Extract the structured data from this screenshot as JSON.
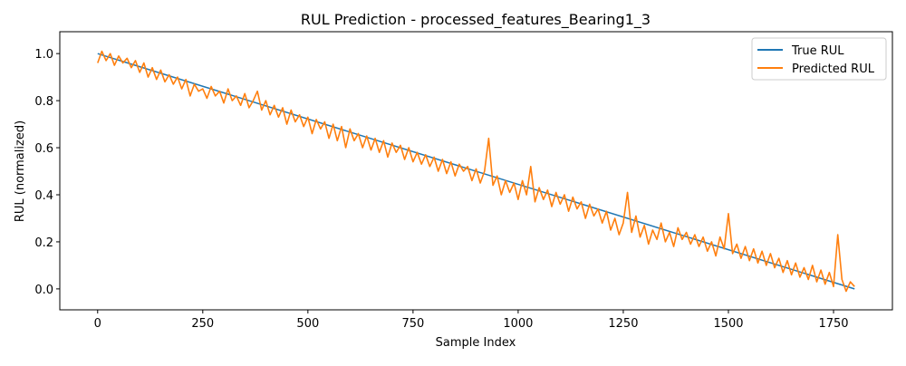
{
  "chart_data": {
    "type": "line",
    "title": "RUL Prediction - processed_features_Bearing1_3",
    "xlabel": "Sample Index",
    "ylabel": "RUL (normalized)",
    "xlim": [
      -90,
      1890
    ],
    "ylim": [
      -0.089,
      1.093
    ],
    "xticks": [
      0,
      250,
      500,
      750,
      1000,
      1250,
      1500,
      1750
    ],
    "yticks": [
      0.0,
      0.2,
      0.4,
      0.6,
      0.8,
      1.0
    ],
    "xtick_labels": [
      "0",
      "250",
      "500",
      "750",
      "1000",
      "1250",
      "1500",
      "1750"
    ],
    "ytick_labels": [
      "0.0",
      "0.2",
      "0.4",
      "0.6",
      "0.8",
      "1.0"
    ],
    "grid": false,
    "legend_position": "top-right",
    "series": [
      {
        "name": "True RUL",
        "color": "#1f77b4",
        "x": [
          0,
          1800
        ],
        "y": [
          1.0,
          0.0
        ]
      },
      {
        "name": "Predicted RUL",
        "color": "#ff7f0e",
        "x_step": 10,
        "y": [
          0.96,
          1.01,
          0.97,
          1.0,
          0.95,
          0.99,
          0.96,
          0.98,
          0.94,
          0.97,
          0.92,
          0.96,
          0.9,
          0.94,
          0.89,
          0.93,
          0.88,
          0.91,
          0.87,
          0.9,
          0.85,
          0.89,
          0.82,
          0.87,
          0.84,
          0.85,
          0.81,
          0.86,
          0.82,
          0.84,
          0.79,
          0.85,
          0.8,
          0.82,
          0.78,
          0.83,
          0.77,
          0.8,
          0.84,
          0.76,
          0.8,
          0.74,
          0.78,
          0.73,
          0.77,
          0.7,
          0.76,
          0.71,
          0.74,
          0.69,
          0.73,
          0.66,
          0.72,
          0.68,
          0.71,
          0.64,
          0.7,
          0.63,
          0.69,
          0.6,
          0.68,
          0.63,
          0.66,
          0.6,
          0.65,
          0.59,
          0.64,
          0.58,
          0.63,
          0.56,
          0.62,
          0.58,
          0.61,
          0.55,
          0.6,
          0.54,
          0.58,
          0.53,
          0.57,
          0.52,
          0.56,
          0.5,
          0.55,
          0.49,
          0.54,
          0.48,
          0.53,
          0.5,
          0.52,
          0.46,
          0.51,
          0.45,
          0.5,
          0.64,
          0.44,
          0.48,
          0.4,
          0.46,
          0.41,
          0.45,
          0.38,
          0.46,
          0.4,
          0.52,
          0.37,
          0.43,
          0.38,
          0.42,
          0.35,
          0.41,
          0.36,
          0.4,
          0.33,
          0.39,
          0.34,
          0.37,
          0.3,
          0.36,
          0.31,
          0.34,
          0.28,
          0.33,
          0.25,
          0.3,
          0.23,
          0.28,
          0.41,
          0.24,
          0.31,
          0.22,
          0.27,
          0.19,
          0.25,
          0.21,
          0.28,
          0.2,
          0.24,
          0.18,
          0.26,
          0.21,
          0.24,
          0.19,
          0.23,
          0.18,
          0.22,
          0.16,
          0.2,
          0.14,
          0.22,
          0.17,
          0.32,
          0.15,
          0.19,
          0.13,
          0.18,
          0.12,
          0.17,
          0.11,
          0.16,
          0.1,
          0.15,
          0.09,
          0.13,
          0.07,
          0.12,
          0.06,
          0.11,
          0.05,
          0.09,
          0.04,
          0.1,
          0.03,
          0.08,
          0.02,
          0.07,
          0.01,
          0.23,
          0.04,
          -0.01,
          0.03,
          0.01
        ]
      }
    ]
  }
}
